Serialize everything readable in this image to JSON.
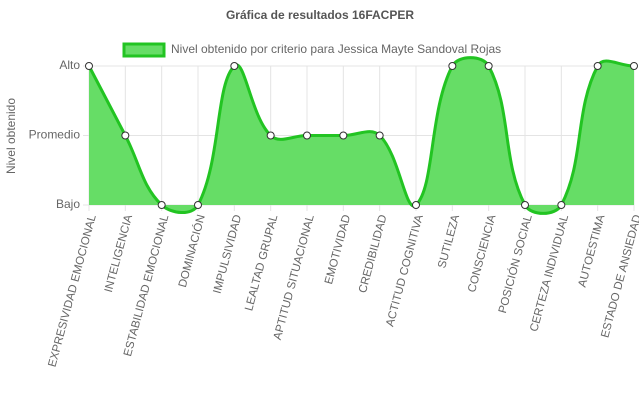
{
  "chart_data": {
    "type": "area",
    "title": "Gráfica de resultados 16FACPER",
    "y_label": "Nivel obtenido",
    "categories": [
      "EXPRESIVIDAD EMOCIONAL",
      "INTELIGENCIA",
      "ESTABILIDAD EMOCIONAL",
      "DOMINACIÓN",
      "IMPULSIVIDAD",
      "LEALTAD GRUPAL",
      "APTITUD SITUACIONAL",
      "EMOTIVIDAD",
      "CREDIBILIDAD",
      "ACTITUD COGNITIVA",
      "SUTILEZA",
      "CONSCIENCIA",
      "POSICIÓN SOCIAL",
      "CERTEZA INDIVIDUAL",
      "AUTOESTIMA",
      "ESTADO DE ANSIEDAD"
    ],
    "series": [
      {
        "name": "Nivel obtenido por criterio para Jessica Mayte Sandoval Rojas",
        "color": "#22c422",
        "fill": "#66dd66",
        "values": [
          2,
          1,
          0,
          0,
          2,
          1,
          1,
          1,
          1,
          0,
          2,
          2,
          0,
          0,
          2,
          2
        ]
      }
    ],
    "ylim": [
      0,
      2
    ],
    "yticks": [
      {
        "value": 0,
        "label": "Bajo"
      },
      {
        "value": 1,
        "label": "Promedio"
      },
      {
        "value": 2,
        "label": "Alto"
      }
    ],
    "grid": true,
    "legend": "top"
  }
}
